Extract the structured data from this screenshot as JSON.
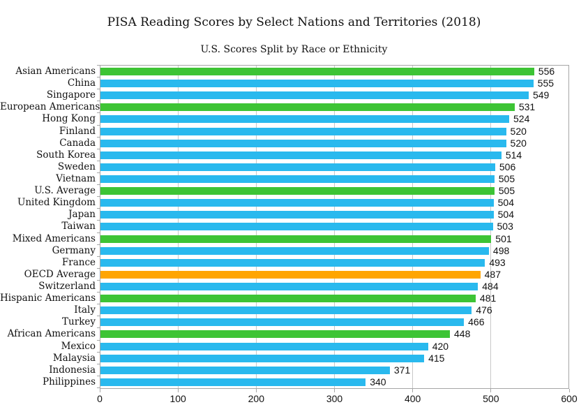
{
  "figure": {
    "title": "PISA Reading Scores by Select Nations and Territories (2018)",
    "subtitle": "U.S. Scores Split by Race or Ethnicity"
  },
  "colors": {
    "country_bar": "#29b9ee",
    "us_group_bar": "#3dc435",
    "oecd_bar": "#ffa500",
    "grid": "#c8c8c8",
    "axis_border": "#a6a6a6",
    "text": "#111111"
  },
  "chart_data": {
    "type": "bar",
    "orientation": "horizontal",
    "title": "PISA Reading Scores by Select Nations and Territories (2018)",
    "subtitle": "U.S. Scores Split by Race or Ethnicity",
    "xlabel": "",
    "ylabel": "",
    "xlim": [
      0,
      600
    ],
    "xticks": [
      0,
      100,
      200,
      300,
      400,
      500,
      600
    ],
    "grid": true,
    "legend": false,
    "value_labels_shown": true,
    "bars": [
      {
        "label": "Asian Americans",
        "value": 556,
        "group": "us_group"
      },
      {
        "label": "China",
        "value": 555,
        "group": "country"
      },
      {
        "label": "Singapore",
        "value": 549,
        "group": "country"
      },
      {
        "label": "European Americans",
        "value": 531,
        "group": "us_group"
      },
      {
        "label": "Hong Kong",
        "value": 524,
        "group": "country"
      },
      {
        "label": "Finland",
        "value": 520,
        "group": "country"
      },
      {
        "label": "Canada",
        "value": 520,
        "group": "country"
      },
      {
        "label": "South Korea",
        "value": 514,
        "group": "country"
      },
      {
        "label": "Sweden",
        "value": 506,
        "group": "country"
      },
      {
        "label": "Vietnam",
        "value": 505,
        "group": "country"
      },
      {
        "label": "U.S. Average",
        "value": 505,
        "group": "us_group"
      },
      {
        "label": "United Kingdom",
        "value": 504,
        "group": "country"
      },
      {
        "label": "Japan",
        "value": 504,
        "group": "country"
      },
      {
        "label": "Taiwan",
        "value": 503,
        "group": "country"
      },
      {
        "label": "Mixed Americans",
        "value": 501,
        "group": "us_group"
      },
      {
        "label": "Germany",
        "value": 498,
        "group": "country"
      },
      {
        "label": "France",
        "value": 493,
        "group": "country"
      },
      {
        "label": "OECD Average",
        "value": 487,
        "group": "oecd"
      },
      {
        "label": "Switzerland",
        "value": 484,
        "group": "country"
      },
      {
        "label": "Hispanic Americans",
        "value": 481,
        "group": "us_group"
      },
      {
        "label": "Italy",
        "value": 476,
        "group": "country"
      },
      {
        "label": "Turkey",
        "value": 466,
        "group": "country"
      },
      {
        "label": "African Americans",
        "value": 448,
        "group": "us_group"
      },
      {
        "label": "Mexico",
        "value": 420,
        "group": "country"
      },
      {
        "label": "Malaysia",
        "value": 415,
        "group": "country"
      },
      {
        "label": "Indonesia",
        "value": 371,
        "group": "country"
      },
      {
        "label": "Philippines",
        "value": 340,
        "group": "country"
      }
    ]
  }
}
